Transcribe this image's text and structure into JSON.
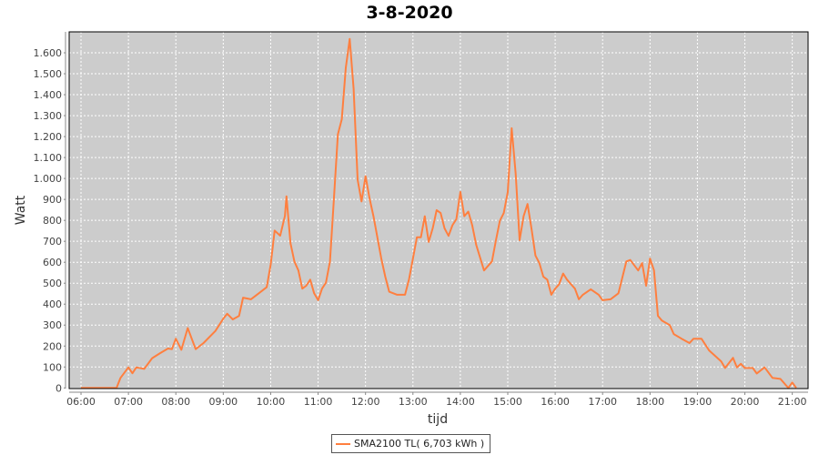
{
  "chart_data": {
    "type": "line",
    "title": "3-8-2020",
    "xlabel": "tijd",
    "ylabel": "Watt",
    "xlim": [
      "05:45",
      "21:20"
    ],
    "ylim": [
      0,
      1700
    ],
    "x_ticks": [
      "06:00",
      "07:00",
      "08:00",
      "09:00",
      "10:00",
      "11:00",
      "12:00",
      "13:00",
      "14:00",
      "15:00",
      "16:00",
      "17:00",
      "18:00",
      "19:00",
      "20:00",
      "21:00"
    ],
    "y_ticks": [
      0,
      100,
      200,
      300,
      400,
      500,
      600,
      700,
      800,
      900,
      1000,
      1100,
      1200,
      1300,
      1400,
      1500,
      1600
    ],
    "y_tick_labels": [
      "0",
      "100",
      "200",
      "300",
      "400",
      "500",
      "600",
      "700",
      "800",
      "900",
      "1.000",
      "1.100",
      "1.200",
      "1.300",
      "1.400",
      "1.500",
      "1.600"
    ],
    "grid": true,
    "legend_placement": "bottom",
    "background_color": "#CCCCCC",
    "series": [
      {
        "name": "SMA2100 TL( 6,703 kWh )",
        "color": "#FF7F3F",
        "x": [
          "06:00",
          "06:45",
          "06:50",
          "07:00",
          "07:05",
          "07:10",
          "07:20",
          "07:30",
          "07:40",
          "07:50",
          "07:55",
          "08:00",
          "08:07",
          "08:15",
          "08:25",
          "08:35",
          "08:50",
          "09:00",
          "09:05",
          "09:12",
          "09:20",
          "09:25",
          "09:35",
          "09:45",
          "09:55",
          "10:00",
          "10:05",
          "10:12",
          "10:18",
          "10:20",
          "10:25",
          "10:30",
          "10:35",
          "10:40",
          "10:45",
          "10:50",
          "10:55",
          "11:00",
          "11:05",
          "11:10",
          "11:15",
          "11:20",
          "11:25",
          "11:30",
          "11:35",
          "11:40",
          "11:45",
          "11:50",
          "11:55",
          "12:00",
          "12:05",
          "12:10",
          "12:15",
          "12:20",
          "12:25",
          "12:30",
          "12:40",
          "12:50",
          "12:55",
          "13:00",
          "13:05",
          "13:10",
          "13:15",
          "13:20",
          "13:25",
          "13:30",
          "13:35",
          "13:40",
          "13:45",
          "13:50",
          "13:55",
          "14:00",
          "14:05",
          "14:10",
          "14:15",
          "14:20",
          "14:30",
          "14:40",
          "14:45",
          "14:50",
          "14:55",
          "15:00",
          "15:05",
          "15:10",
          "15:15",
          "15:20",
          "15:25",
          "15:30",
          "15:35",
          "15:40",
          "15:45",
          "15:50",
          "15:55",
          "16:00",
          "16:05",
          "16:10",
          "16:15",
          "16:20",
          "16:25",
          "16:30",
          "16:35",
          "16:45",
          "16:55",
          "17:00",
          "17:10",
          "17:20",
          "17:30",
          "17:35",
          "17:45",
          "17:50",
          "17:55",
          "18:00",
          "18:05",
          "18:10",
          "18:15",
          "18:25",
          "18:30",
          "18:40",
          "18:50",
          "18:55",
          "19:05",
          "19:15",
          "19:30",
          "19:35",
          "19:45",
          "19:50",
          "19:55",
          "20:00",
          "20:10",
          "20:15",
          "20:25",
          "20:35",
          "20:45",
          "20:55",
          "21:00",
          "21:05"
        ],
        "values": [
          0,
          0,
          48,
          98,
          70,
          98,
          91,
          142,
          166,
          188,
          185,
          235,
          182,
          286,
          185,
          214,
          272,
          330,
          354,
          327,
          344,
          431,
          423,
          452,
          481,
          590,
          751,
          727,
          821,
          915,
          691,
          604,
          561,
          474,
          488,
          517,
          452,
          419,
          474,
          503,
          604,
          900,
          1211,
          1283,
          1529,
          1666,
          1428,
          994,
          890,
          1011,
          907,
          820,
          719,
          618,
          531,
          459,
          445,
          445,
          517,
          618,
          719,
          719,
          820,
          697,
          762,
          849,
          835,
          762,
          726,
          777,
          806,
          936,
          820,
          842,
          777,
          683,
          561,
          604,
          705,
          798,
          835,
          936,
          1240,
          1022,
          705,
          820,
          878,
          762,
          632,
          596,
          531,
          517,
          445,
          474,
          495,
          546,
          517,
          495,
          474,
          423,
          445,
          471,
          445,
          419,
          423,
          452,
          604,
          611,
          561,
          596,
          488,
          618,
          561,
          344,
          322,
          300,
          257,
          235,
          214,
          235,
          235,
          178,
          127,
          95,
          144,
          98,
          115,
          95,
          95,
          69,
          98,
          48,
          43,
          0,
          26,
          0
        ]
      }
    ]
  }
}
